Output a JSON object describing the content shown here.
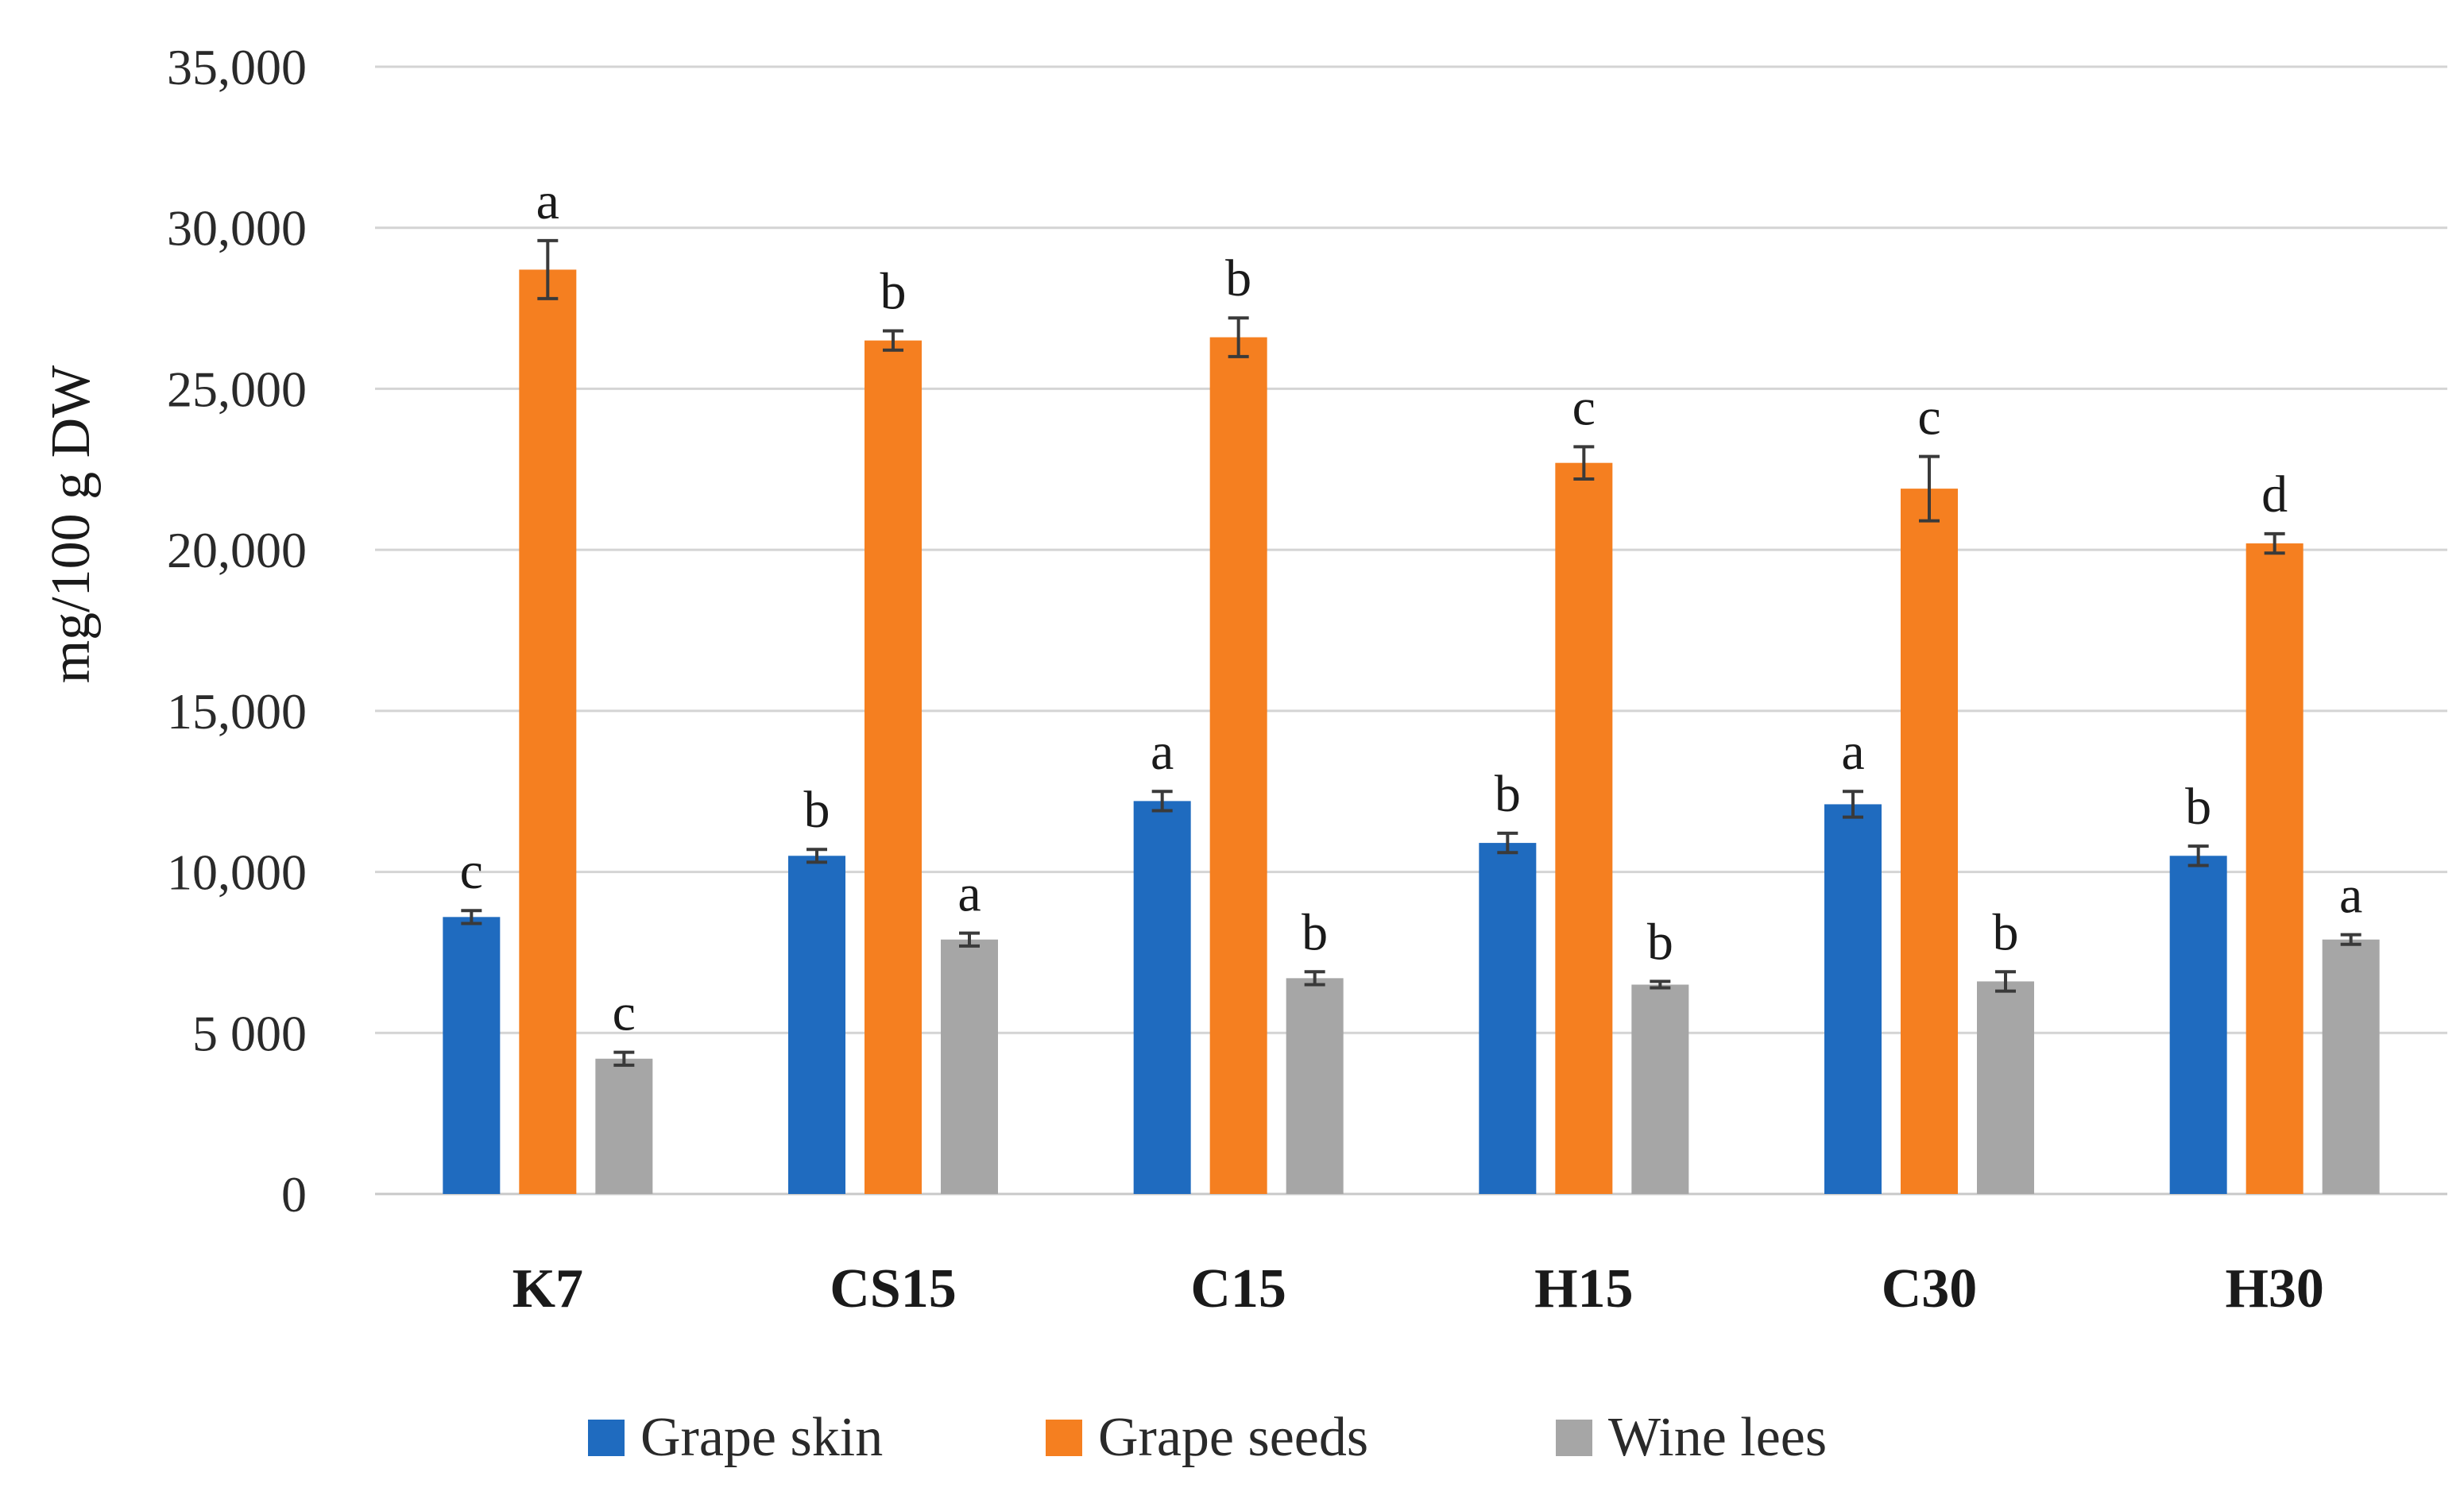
{
  "chart_data": {
    "type": "bar",
    "title": "",
    "xlabel": "",
    "ylabel": "mg/100 g DW",
    "ylim": [
      0,
      35000
    ],
    "yticks": [
      {
        "value": 0,
        "label": "0"
      },
      {
        "value": 5000,
        "label": "5 000"
      },
      {
        "value": 10000,
        "label": "10,000"
      },
      {
        "value": 15000,
        "label": "15,000"
      },
      {
        "value": 20000,
        "label": "20,000"
      },
      {
        "value": 25000,
        "label": "25,000"
      },
      {
        "value": 30000,
        "label": "30,000"
      },
      {
        "value": 35000,
        "label": "35,000"
      }
    ],
    "grid": true,
    "legend_position": "bottom",
    "categories": [
      "K7",
      "CS15",
      "C15",
      "H15",
      "C30",
      "H30"
    ],
    "series": [
      {
        "name": "Grape skin",
        "color": "#1f6bbf",
        "values": [
          8600,
          10500,
          12200,
          10900,
          12100,
          10500
        ],
        "errors": [
          200,
          200,
          300,
          300,
          400,
          300
        ],
        "letters": [
          "c",
          "b",
          "a",
          "b",
          "a",
          "b"
        ]
      },
      {
        "name": "Grape seeds",
        "color": "#f57f20",
        "values": [
          28700,
          26500,
          26600,
          22700,
          21900,
          20200
        ],
        "errors": [
          900,
          300,
          600,
          500,
          1000,
          300
        ],
        "letters": [
          "a",
          "b",
          "b",
          "c",
          "c",
          "d"
        ]
      },
      {
        "name": "Wine lees",
        "color": "#a6a6a6",
        "values": [
          4200,
          7900,
          6700,
          6500,
          6600,
          7900
        ],
        "errors": [
          200,
          200,
          200,
          100,
          300,
          150
        ],
        "letters": [
          "c",
          "a",
          "b",
          "b",
          "b",
          "a"
        ]
      }
    ]
  }
}
